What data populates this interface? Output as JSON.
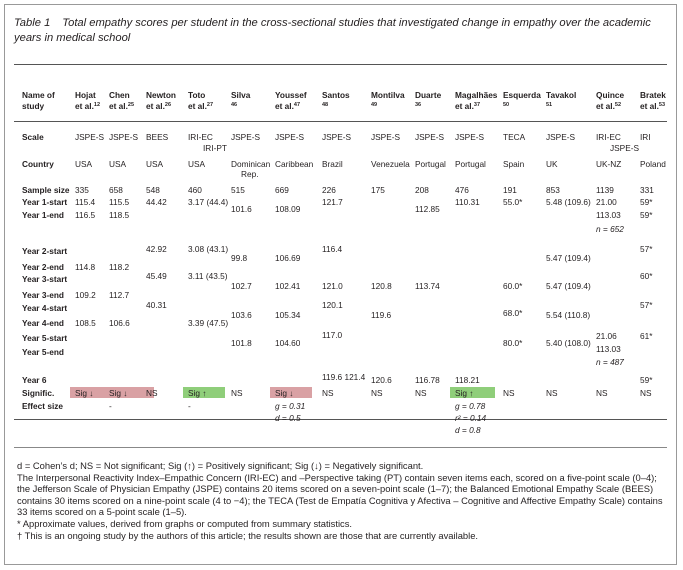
{
  "caption": {
    "label": "Table 1",
    "text": "Total empathy scores per student in the cross-sectional studies that investigated change in empathy over the academic years in medical school"
  },
  "header": {
    "first_col": [
      "Name of",
      "study"
    ],
    "studies": [
      {
        "name": "Hojat",
        "ref": "et al.",
        "sup": "12"
      },
      {
        "name": "Chen",
        "ref": "et al.",
        "sup": "25"
      },
      {
        "name": "Newton",
        "ref": "et al.",
        "sup": "26"
      },
      {
        "name": "Toto",
        "ref": "et al.",
        "sup": "27"
      },
      {
        "name": "Silva",
        "ref": "",
        "sup": "46"
      },
      {
        "name": "Youssef",
        "ref": "et al.",
        "sup": "47"
      },
      {
        "name": "Santos",
        "ref": "",
        "sup": "48"
      },
      {
        "name": "Montilva",
        "ref": "",
        "sup": "49"
      },
      {
        "name": "Duarte",
        "ref": "",
        "sup": "36"
      },
      {
        "name": "Magalhães",
        "ref": "et al.",
        "sup": "37"
      },
      {
        "name": "Esquerda",
        "ref": "",
        "sup": "50"
      },
      {
        "name": "Tavakol",
        "ref": "",
        "sup": "51"
      },
      {
        "name": "Quince",
        "ref": "et al.",
        "sup": "52"
      },
      {
        "name": "Bratek",
        "ref": "et al.",
        "sup": "53"
      }
    ]
  },
  "scale": {
    "label": "Scale",
    "values": [
      "JSPE-S",
      "JSPE-S",
      "BEES",
      "IRI-EC",
      "JSPE-S",
      "JSPE-S",
      "JSPE-S",
      "JSPE-S",
      "JSPE-S",
      "JSPE-S",
      "TECA",
      "JSPE-S",
      "IRI-EC",
      "IRI"
    ],
    "extra_toto": "IRI-PT",
    "extra_quince": "JSPE-S"
  },
  "country": {
    "label": "Country",
    "values": [
      "USA",
      "USA",
      "USA",
      "USA",
      "Dominican",
      "Caribbean",
      "Brazil",
      "Venezuela",
      "Portugal",
      "Portugal",
      "Spain",
      "UK",
      "UK-NZ",
      "Poland"
    ],
    "silva_extra": "Rep."
  },
  "rows": {
    "sample": {
      "label": "Sample size",
      "values": [
        "335",
        "658",
        "548",
        "460",
        "515",
        "669",
        "226",
        "175",
        "208",
        "476",
        "191",
        "853",
        "1139",
        "331"
      ]
    },
    "y1s": {
      "label": "Year 1-start",
      "values": [
        "115.4",
        "115.5",
        "44.42",
        "3.17 (44.4)",
        "",
        "",
        "121.7",
        "",
        "",
        "110.31",
        "55.0*",
        "5.48 (109.6)",
        "21.00",
        "59*"
      ]
    },
    "y1mid": {
      "silva": "101.6",
      "youssef": "108.09",
      "duarte": "112.85"
    },
    "y1e": {
      "label": "Year 1-end",
      "values": [
        "116.5",
        "118.5",
        "",
        "",
        "",
        "",
        "",
        "",
        "",
        "",
        "",
        "",
        "113.03",
        "59*"
      ],
      "quince_n": "n = 652"
    },
    "y2s": {
      "label": "Year 2-start",
      "newton": "42.92",
      "toto": "3.08 (43.1)",
      "santos": "116.4",
      "bratek": "57*"
    },
    "y2mid": {
      "silva": "99.8",
      "youssef": "106.69",
      "tavakol": "5.47 (109.4)"
    },
    "y2e": {
      "label": "Year 2-end",
      "hojat": "114.8",
      "chen": "118.2"
    },
    "y3s": {
      "label": "Year 3-start",
      "newton": "45.49",
      "toto": "3.11 (43.5)",
      "santos": "121.0",
      "montilva": "120.8",
      "duarte": "113.74",
      "esquerda": "60.0*",
      "tavakol": "5.47 (109.4)",
      "bratek": "60*",
      "silva": "102.7",
      "youssef": "102.41"
    },
    "y3e": {
      "label": "Year 3-end",
      "hojat": "109.2",
      "chen": "112.7"
    },
    "y4s": {
      "label": "Year 4-start",
      "newton": "40.31",
      "santos": "120.1",
      "esquerda": "68.0*",
      "bratek": "57*"
    },
    "y4mid": {
      "silva": "103.6",
      "youssef": "105.34",
      "montilva": "119.6",
      "tavakol": "5.54 (110.8)"
    },
    "y4e": {
      "label": "Year 4-end",
      "hojat": "108.5",
      "chen": "106.6",
      "toto": "3.39 (47.5)"
    },
    "y5s": {
      "label": "Year 5-start",
      "santos": "117.0",
      "esquerda": "80.0*",
      "tavakol": "5.40 (108.0)",
      "quince": "21.06",
      "bratek": "61*",
      "silva": "101.8",
      "youssef": "104.60"
    },
    "y5e": {
      "label": "Year 5-end",
      "quince": "113.03",
      "quince_n": "n = 487"
    },
    "y6": {
      "label": "Year 6",
      "santos": "119.6 121.4",
      "montilva": "120.6",
      "duarte": "116.78",
      "magalhaes": "118.21",
      "bratek": "59*"
    },
    "signif": {
      "label": "Signific.",
      "values": [
        "Sig ↓",
        "Sig ↓",
        "NS",
        "Sig ↑",
        "NS",
        "Sig ↓",
        "NS",
        "NS",
        "NS",
        "Sig ↑",
        "NS",
        "NS",
        "NS",
        "NS"
      ]
    },
    "effect": {
      "label": "Effect size",
      "chen": "-",
      "toto": "-",
      "youssef_g": "g = 0.31",
      "youssef_d": "d = 0.5",
      "mag_g": "g = 0.78",
      "mag_r": "r² = 0.14",
      "mag_d": "d = 0.8"
    }
  },
  "colors": {
    "sig_down": "#d9a1a4",
    "sig_up": "#8fce7a"
  },
  "notes": [
    "d = Cohen’s d; NS = Not significant; Sig (↑) = Positively significant; Sig (↓) = Negatively significant.",
    "The Interpersonal Reactivity Index–Empathic Concern (IRI-EC) and –Perspective taking (PT) contain seven items each, scored on a five-point scale (0–4); the Jefferson Scale of Physician Empathy (JSPE) contains 20 items scored on a seven-point scale (1–7); the Balanced Emotional Empathy Scale (BEES) contains 30 items scored on a nine-point scale (4 to −4); the TECA (Test de Empatía Cognitiva y Afectiva – Cognitive and Affective Empathy Scale) contains 33 items scored on a 5-point scale (1–5).",
    "* Approximate values, derived from graphs or computed from summary statistics.",
    "† This is an ongoing study by the authors of this article; the results shown are those that are currently available."
  ]
}
